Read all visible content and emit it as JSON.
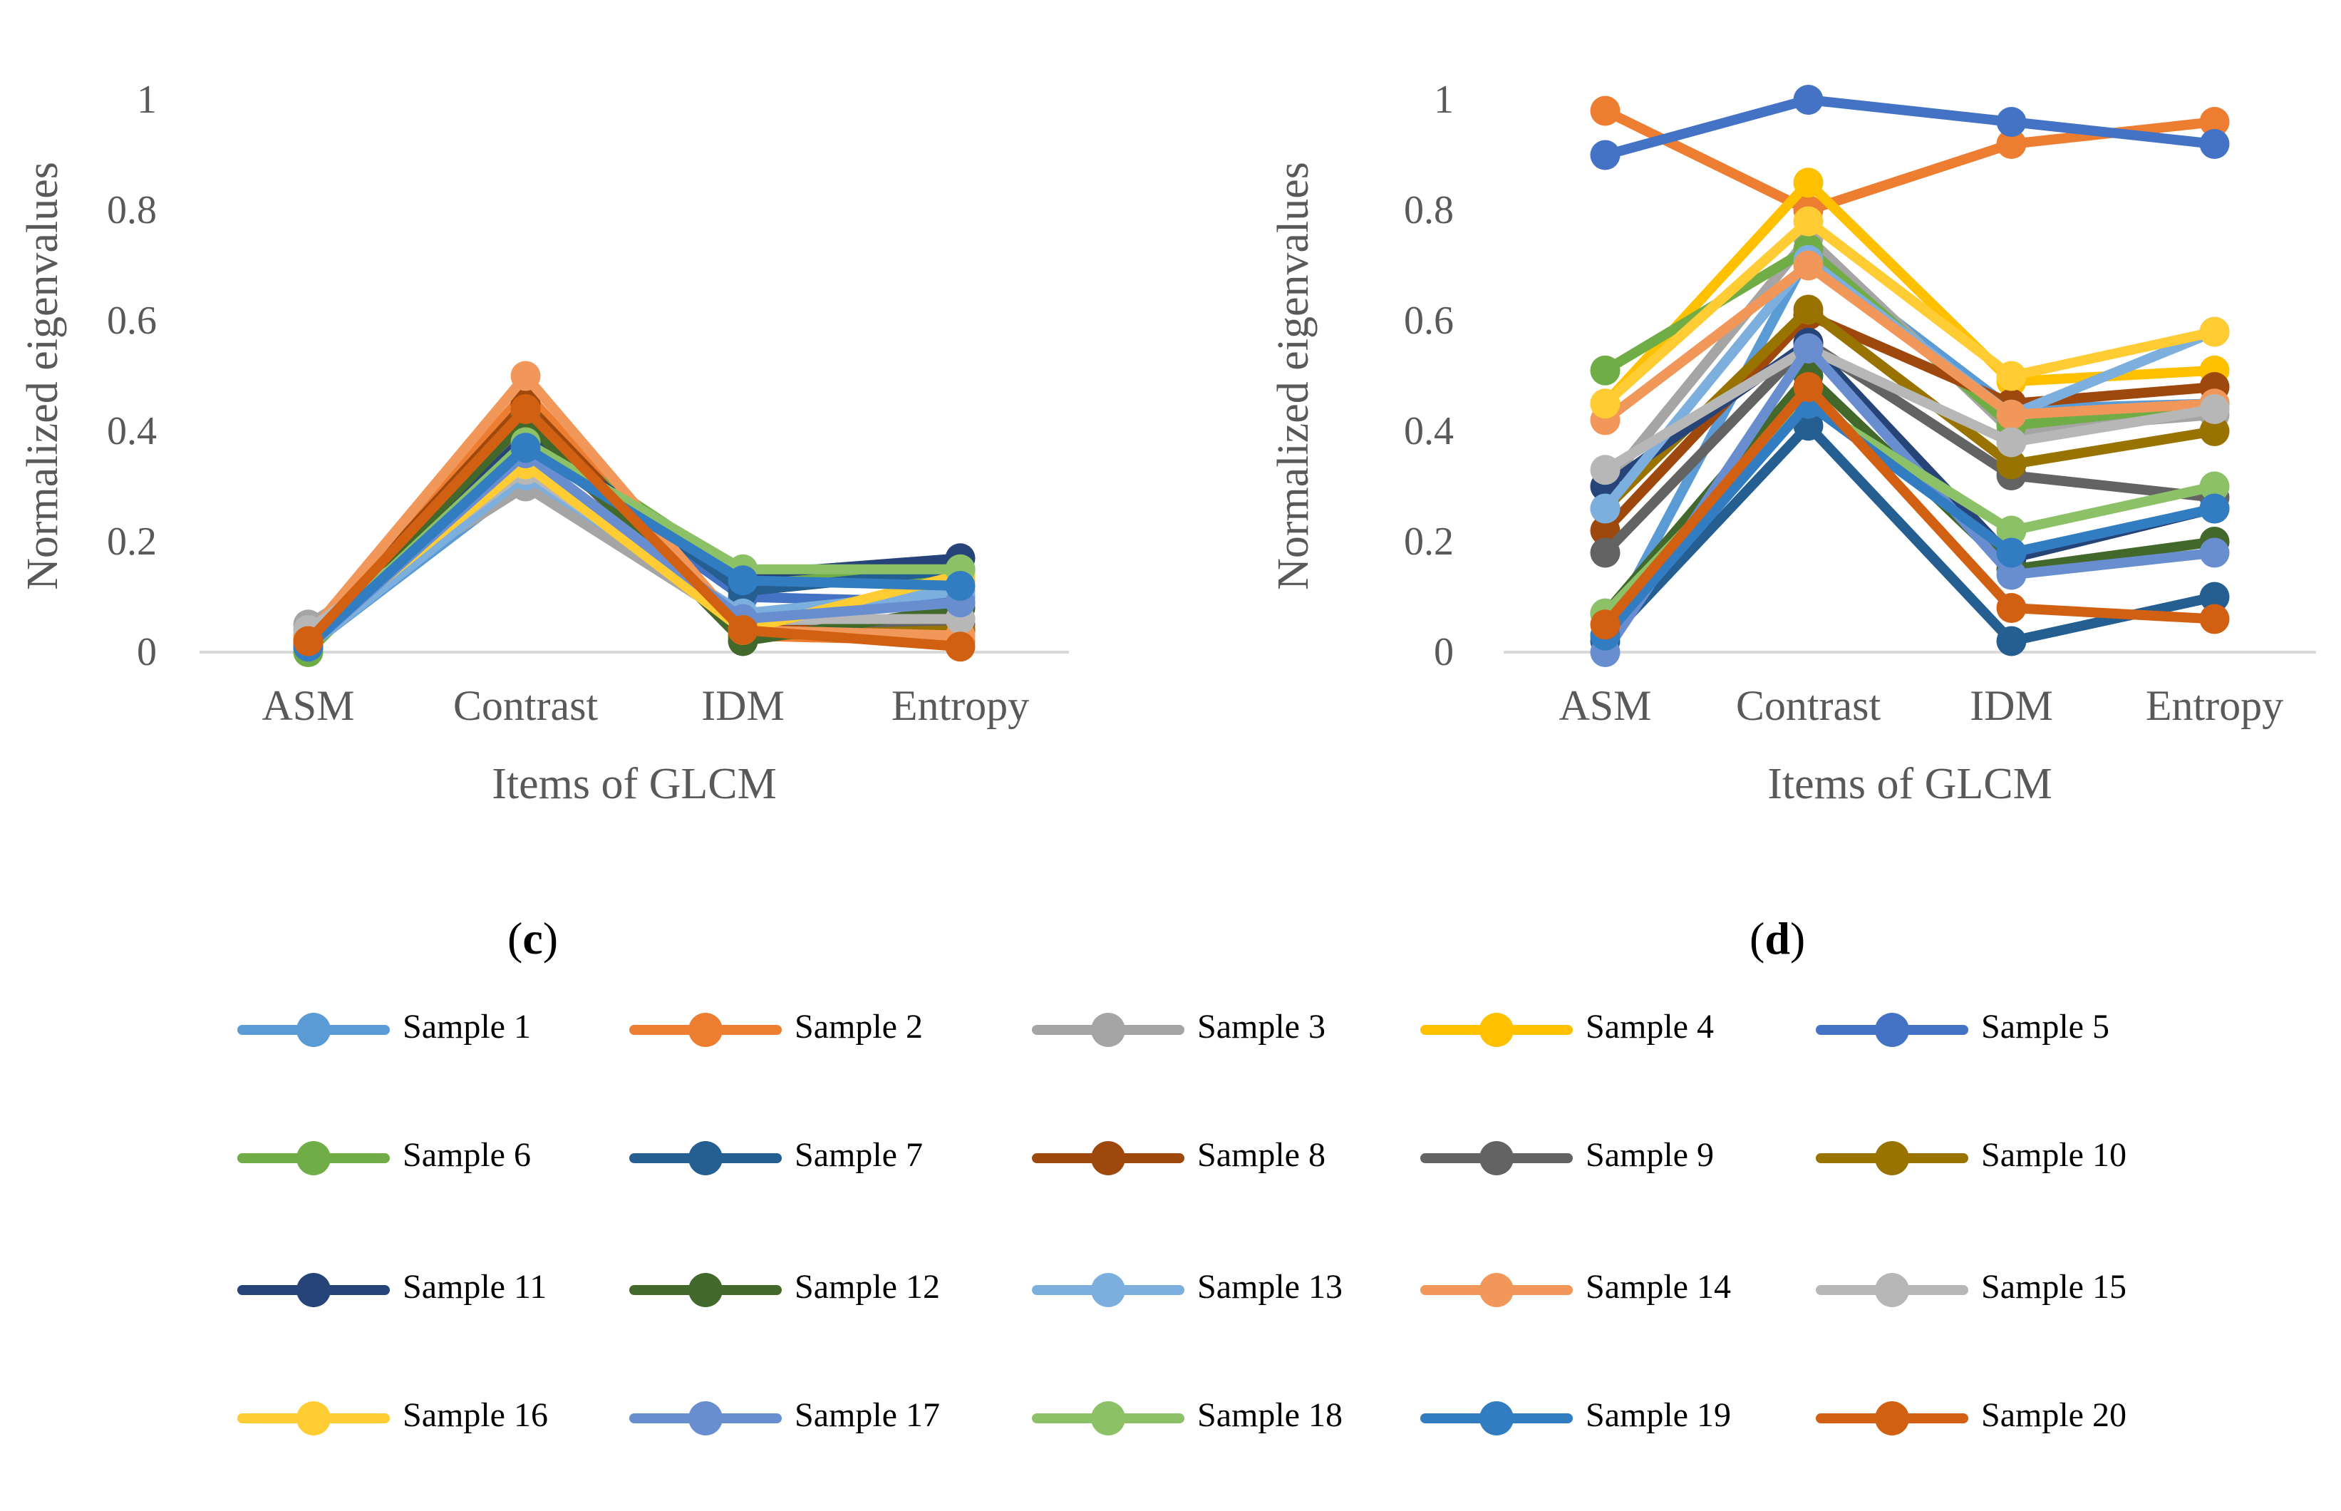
{
  "chart_data": [
    {
      "panel": "c",
      "type": "line",
      "title": "",
      "panel_label_open": "(",
      "panel_label": "c",
      "panel_label_close": ")",
      "xlabel": "Items of GLCM",
      "ylabel": "Normalized eigenvalues",
      "categories": [
        "ASM",
        "Contrast",
        "IDM",
        "Entropy"
      ],
      "yticks": [
        "0",
        "0.2",
        "0.4",
        "0.6",
        "0.8",
        "1"
      ],
      "ylim": [
        0,
        1
      ],
      "series": [
        {
          "name": "Sample 1",
          "values": [
            0.01,
            0.31,
            0.05,
            0.1
          ]
        },
        {
          "name": "Sample 2",
          "values": [
            0.02,
            0.47,
            0.03,
            0.02
          ]
        },
        {
          "name": "Sample 3",
          "values": [
            0.05,
            0.3,
            0.05,
            0.06
          ]
        },
        {
          "name": "Sample 4",
          "values": [
            0.03,
            0.35,
            0.05,
            0.13
          ]
        },
        {
          "name": "Sample 5",
          "values": [
            0.01,
            0.38,
            0.1,
            0.09
          ]
        },
        {
          "name": "Sample 6",
          "values": [
            0.0,
            0.4,
            0.14,
            0.14
          ]
        },
        {
          "name": "Sample 7",
          "values": [
            0.01,
            0.4,
            0.11,
            0.15
          ]
        },
        {
          "name": "Sample 8",
          "values": [
            0.02,
            0.45,
            0.04,
            0.04
          ]
        },
        {
          "name": "Sample 9",
          "values": [
            0.01,
            0.41,
            0.03,
            0.05
          ]
        },
        {
          "name": "Sample 10",
          "values": [
            0.02,
            0.43,
            0.03,
            0.04
          ]
        },
        {
          "name": "Sample 11",
          "values": [
            0.01,
            0.39,
            0.14,
            0.17
          ]
        },
        {
          "name": "Sample 12",
          "values": [
            0.01,
            0.42,
            0.02,
            0.08
          ]
        },
        {
          "name": "Sample 13",
          "values": [
            0.01,
            0.32,
            0.07,
            0.11
          ]
        },
        {
          "name": "Sample 14",
          "values": [
            0.03,
            0.5,
            0.04,
            0.03
          ]
        },
        {
          "name": "Sample 15",
          "values": [
            0.04,
            0.33,
            0.06,
            0.06
          ]
        },
        {
          "name": "Sample 16",
          "values": [
            0.02,
            0.34,
            0.04,
            0.14
          ]
        },
        {
          "name": "Sample 17",
          "values": [
            0.01,
            0.36,
            0.06,
            0.09
          ]
        },
        {
          "name": "Sample 18",
          "values": [
            0.01,
            0.38,
            0.15,
            0.15
          ]
        },
        {
          "name": "Sample 19",
          "values": [
            0.01,
            0.37,
            0.13,
            0.12
          ]
        },
        {
          "name": "Sample 20",
          "values": [
            0.02,
            0.44,
            0.04,
            0.01
          ]
        }
      ]
    },
    {
      "panel": "d",
      "type": "line",
      "title": "",
      "panel_label_open": "(",
      "panel_label": "d",
      "panel_label_close": ")",
      "xlabel": "Items of GLCM",
      "ylabel": "Normalized eigenvalues",
      "categories": [
        "ASM",
        "Contrast",
        "IDM",
        "Entropy"
      ],
      "yticks": [
        "0",
        "0.2",
        "0.4",
        "0.6",
        "0.8",
        "1"
      ],
      "ylim": [
        0,
        1
      ],
      "series": [
        {
          "name": "Sample 1",
          "values": [
            0.03,
            0.72,
            0.44,
            0.45
          ]
        },
        {
          "name": "Sample 2",
          "values": [
            0.98,
            0.8,
            0.92,
            0.96
          ]
        },
        {
          "name": "Sample 3",
          "values": [
            0.3,
            0.75,
            0.4,
            0.43
          ]
        },
        {
          "name": "Sample 4",
          "values": [
            0.45,
            0.85,
            0.49,
            0.51
          ]
        },
        {
          "name": "Sample 5",
          "values": [
            0.9,
            1.0,
            0.96,
            0.92
          ]
        },
        {
          "name": "Sample 6",
          "values": [
            0.51,
            0.73,
            0.41,
            0.45
          ]
        },
        {
          "name": "Sample 7",
          "values": [
            0.02,
            0.41,
            0.02,
            0.1
          ]
        },
        {
          "name": "Sample 8",
          "values": [
            0.22,
            0.61,
            0.45,
            0.48
          ]
        },
        {
          "name": "Sample 9",
          "values": [
            0.18,
            0.56,
            0.32,
            0.28
          ]
        },
        {
          "name": "Sample 10",
          "values": [
            0.26,
            0.62,
            0.34,
            0.4
          ]
        },
        {
          "name": "Sample 11",
          "values": [
            0.3,
            0.56,
            0.17,
            0.26
          ]
        },
        {
          "name": "Sample 12",
          "values": [
            0.07,
            0.5,
            0.15,
            0.2
          ]
        },
        {
          "name": "Sample 13",
          "values": [
            0.26,
            0.71,
            0.43,
            0.58
          ]
        },
        {
          "name": "Sample 14",
          "values": [
            0.42,
            0.7,
            0.43,
            0.45
          ]
        },
        {
          "name": "Sample 15",
          "values": [
            0.33,
            0.55,
            0.38,
            0.44
          ]
        },
        {
          "name": "Sample 16",
          "values": [
            0.45,
            0.78,
            0.5,
            0.58
          ]
        },
        {
          "name": "Sample 17",
          "values": [
            0.0,
            0.55,
            0.14,
            0.18
          ]
        },
        {
          "name": "Sample 18",
          "values": [
            0.07,
            0.45,
            0.22,
            0.3
          ]
        },
        {
          "name": "Sample 19",
          "values": [
            0.03,
            0.45,
            0.18,
            0.26
          ]
        },
        {
          "name": "Sample 20",
          "values": [
            0.05,
            0.48,
            0.08,
            0.06
          ]
        }
      ]
    }
  ],
  "legend": {
    "items": [
      {
        "label": "Sample 1",
        "color": "#5B9BD5"
      },
      {
        "label": "Sample 2",
        "color": "#ED7D31"
      },
      {
        "label": "Sample 3",
        "color": "#A5A5A5"
      },
      {
        "label": "Sample 4",
        "color": "#FFC000"
      },
      {
        "label": "Sample 5",
        "color": "#4472C4"
      },
      {
        "label": "Sample 6",
        "color": "#70AD47"
      },
      {
        "label": "Sample 7",
        "color": "#255E91"
      },
      {
        "label": "Sample 8",
        "color": "#9E480E"
      },
      {
        "label": "Sample 9",
        "color": "#636363"
      },
      {
        "label": "Sample 10",
        "color": "#997300"
      },
      {
        "label": "Sample 11",
        "color": "#264478"
      },
      {
        "label": "Sample 12",
        "color": "#43682B"
      },
      {
        "label": "Sample 13",
        "color": "#7CAFDD"
      },
      {
        "label": "Sample 14",
        "color": "#F1975A"
      },
      {
        "label": "Sample 15",
        "color": "#B7B7B7"
      },
      {
        "label": "Sample 16",
        "color": "#FFCD33"
      },
      {
        "label": "Sample 17",
        "color": "#698ED0"
      },
      {
        "label": "Sample 18",
        "color": "#8CC168"
      },
      {
        "label": "Sample 19",
        "color": "#327DC2"
      },
      {
        "label": "Sample 20",
        "color": "#D26012"
      }
    ]
  }
}
